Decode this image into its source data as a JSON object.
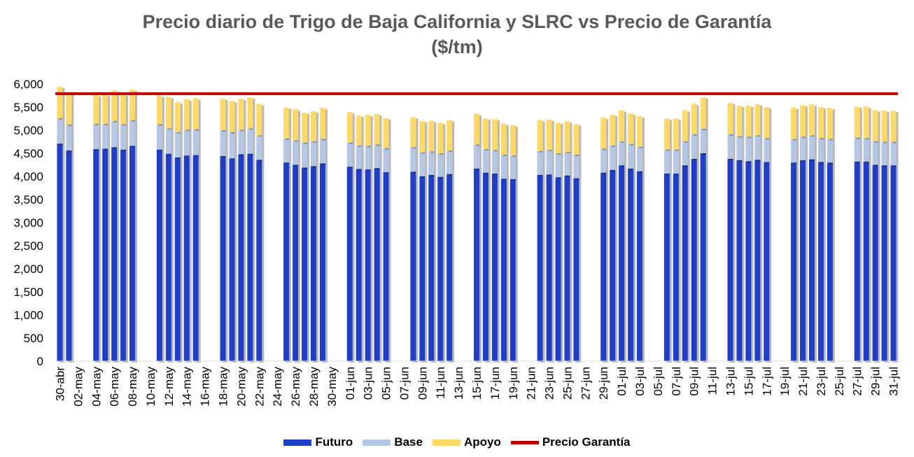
{
  "chart_data": {
    "type": "bar",
    "stacked": true,
    "title": "Precio diario de Trigo de Baja California y SLRC vs Precio de Garantía",
    "subtitle": "($/tm)",
    "ylim": [
      0,
      6000
    ],
    "yticks": [
      "0",
      "500",
      "1,000",
      "1,500",
      "2,000",
      "2,500",
      "3,000",
      "3,500",
      "4,000",
      "4,500",
      "5,000",
      "5,500",
      "6,000"
    ],
    "ytick_values": [
      0,
      500,
      1000,
      1500,
      2000,
      2500,
      3000,
      3500,
      4000,
      4500,
      5000,
      5500,
      6000
    ],
    "x_tick_labels": [
      "30-abr",
      "02-may",
      "04-may",
      "06-may",
      "08-may",
      "10-may",
      "12-may",
      "14-may",
      "16-may",
      "18-may",
      "20-may",
      "22-may",
      "24-may",
      "26-may",
      "28-may",
      "30-may",
      "01-jun",
      "03-jun",
      "05-jun",
      "07-jun",
      "09-jun",
      "11-jun",
      "13-jun",
      "15-jun",
      "17-jun",
      "19-jun",
      "21-jun",
      "23-jun",
      "25-jun",
      "27-jun",
      "29-jun",
      "01-jul",
      "03-jul",
      "05-jul",
      "07-jul",
      "09-jul",
      "11-jul",
      "13-jul",
      "15-jul",
      "17-jul",
      "19-jul",
      "21-jul",
      "23-jul",
      "25-jul",
      "27-jul",
      "29-jul",
      "31-jul"
    ],
    "series": [
      {
        "name": "Futuro",
        "color": "#1f3fc9"
      },
      {
        "name": "Base",
        "color": "#b4c7e7"
      },
      {
        "name": "Apoyo",
        "color": "#ffd966"
      },
      {
        "name": "Precio Garantía",
        "color": "#c00000",
        "type": "line",
        "value": 5790
      }
    ],
    "points": [
      {
        "date": "30-abr",
        "futuro": 4710,
        "base": 550,
        "apoyo": 680
      },
      {
        "date": "01-may",
        "futuro": 4560,
        "base": 560,
        "apoyo": 680
      },
      {
        "date": "04-may",
        "futuro": 4590,
        "base": 550,
        "apoyo": 620
      },
      {
        "date": "05-may",
        "futuro": 4600,
        "base": 540,
        "apoyo": 630
      },
      {
        "date": "06-may",
        "futuro": 4630,
        "base": 570,
        "apoyo": 660
      },
      {
        "date": "07-may",
        "futuro": 4580,
        "base": 550,
        "apoyo": 640
      },
      {
        "date": "08-may",
        "futuro": 4660,
        "base": 560,
        "apoyo": 660
      },
      {
        "date": "11-may",
        "futuro": 4580,
        "base": 550,
        "apoyo": 620
      },
      {
        "date": "12-may",
        "futuro": 4490,
        "base": 550,
        "apoyo": 680
      },
      {
        "date": "13-may",
        "futuro": 4410,
        "base": 550,
        "apoyo": 650
      },
      {
        "date": "14-may",
        "futuro": 4450,
        "base": 560,
        "apoyo": 660
      },
      {
        "date": "15-may",
        "futuro": 4460,
        "base": 560,
        "apoyo": 670
      },
      {
        "date": "18-may",
        "futuro": 4440,
        "base": 560,
        "apoyo": 680
      },
      {
        "date": "19-may",
        "futuro": 4390,
        "base": 570,
        "apoyo": 670
      },
      {
        "date": "20-may",
        "futuro": 4480,
        "base": 530,
        "apoyo": 670
      },
      {
        "date": "21-may",
        "futuro": 4490,
        "base": 550,
        "apoyo": 670
      },
      {
        "date": "22-may",
        "futuro": 4360,
        "base": 530,
        "apoyo": 680
      },
      {
        "date": "25-may",
        "futuro": 4300,
        "base": 520,
        "apoyo": 670
      },
      {
        "date": "26-may",
        "futuro": 4250,
        "base": 530,
        "apoyo": 670
      },
      {
        "date": "27-may",
        "futuro": 4190,
        "base": 540,
        "apoyo": 650
      },
      {
        "date": "28-may",
        "futuro": 4220,
        "base": 540,
        "apoyo": 650
      },
      {
        "date": "29-may",
        "futuro": 4280,
        "base": 530,
        "apoyo": 670
      },
      {
        "date": "01-jun",
        "futuro": 4210,
        "base": 520,
        "apoyo": 660
      },
      {
        "date": "02-jun",
        "futuro": 4160,
        "base": 510,
        "apoyo": 650
      },
      {
        "date": "03-jun",
        "futuro": 4150,
        "base": 510,
        "apoyo": 670
      },
      {
        "date": "04-jun",
        "futuro": 4180,
        "base": 510,
        "apoyo": 660
      },
      {
        "date": "05-jun",
        "futuro": 4090,
        "base": 520,
        "apoyo": 650
      },
      {
        "date": "08-jun",
        "futuro": 4100,
        "base": 530,
        "apoyo": 650
      },
      {
        "date": "09-jun",
        "futuro": 4000,
        "base": 520,
        "apoyo": 680
      },
      {
        "date": "10-jun",
        "futuro": 4030,
        "base": 510,
        "apoyo": 660
      },
      {
        "date": "11-jun",
        "futuro": 3990,
        "base": 510,
        "apoyo": 660
      },
      {
        "date": "12-jun",
        "futuro": 4050,
        "base": 510,
        "apoyo": 660
      },
      {
        "date": "15-jun",
        "futuro": 4170,
        "base": 520,
        "apoyo": 660
      },
      {
        "date": "16-jun",
        "futuro": 4080,
        "base": 510,
        "apoyo": 660
      },
      {
        "date": "17-jun",
        "futuro": 4060,
        "base": 510,
        "apoyo": 670
      },
      {
        "date": "18-jun",
        "futuro": 3950,
        "base": 520,
        "apoyo": 670
      },
      {
        "date": "19-jun",
        "futuro": 3940,
        "base": 510,
        "apoyo": 660
      },
      {
        "date": "22-jun",
        "futuro": 4030,
        "base": 520,
        "apoyo": 670
      },
      {
        "date": "23-jun",
        "futuro": 4040,
        "base": 530,
        "apoyo": 660
      },
      {
        "date": "24-jun",
        "futuro": 3980,
        "base": 520,
        "apoyo": 660
      },
      {
        "date": "25-jun",
        "futuro": 4020,
        "base": 510,
        "apoyo": 660
      },
      {
        "date": "26-jun",
        "futuro": 3960,
        "base": 510,
        "apoyo": 660
      },
      {
        "date": "29-jun",
        "futuro": 4080,
        "base": 520,
        "apoyo": 670
      },
      {
        "date": "30-jun",
        "futuro": 4140,
        "base": 530,
        "apoyo": 660
      },
      {
        "date": "01-jul",
        "futuro": 4240,
        "base": 520,
        "apoyo": 670
      },
      {
        "date": "02-jul",
        "futuro": 4170,
        "base": 530,
        "apoyo": 660
      },
      {
        "date": "03-jul",
        "futuro": 4110,
        "base": 530,
        "apoyo": 660
      },
      {
        "date": "06-jul",
        "futuro": 4060,
        "base": 520,
        "apoyo": 670
      },
      {
        "date": "07-jul",
        "futuro": 4060,
        "base": 520,
        "apoyo": 670
      },
      {
        "date": "08-jul",
        "futuro": 4240,
        "base": 520,
        "apoyo": 670
      },
      {
        "date": "09-jul",
        "futuro": 4380,
        "base": 530,
        "apoyo": 660
      },
      {
        "date": "10-jul",
        "futuro": 4500,
        "base": 530,
        "apoyo": 680
      },
      {
        "date": "13-jul",
        "futuro": 4380,
        "base": 530,
        "apoyo": 680
      },
      {
        "date": "14-jul",
        "futuro": 4350,
        "base": 520,
        "apoyo": 660
      },
      {
        "date": "15-jul",
        "futuro": 4330,
        "base": 530,
        "apoyo": 670
      },
      {
        "date": "16-jul",
        "futuro": 4360,
        "base": 530,
        "apoyo": 670
      },
      {
        "date": "17-jul",
        "futuro": 4310,
        "base": 520,
        "apoyo": 670
      },
      {
        "date": "20-jul",
        "futuro": 4300,
        "base": 510,
        "apoyo": 680
      },
      {
        "date": "21-jul",
        "futuro": 4350,
        "base": 510,
        "apoyo": 680
      },
      {
        "date": "22-jul",
        "futuro": 4370,
        "base": 520,
        "apoyo": 670
      },
      {
        "date": "23-jul",
        "futuro": 4310,
        "base": 520,
        "apoyo": 670
      },
      {
        "date": "24-jul",
        "futuro": 4300,
        "base": 510,
        "apoyo": 670
      },
      {
        "date": "27-jul",
        "futuro": 4320,
        "base": 520,
        "apoyo": 670
      },
      {
        "date": "28-jul",
        "futuro": 4320,
        "base": 510,
        "apoyo": 680
      },
      {
        "date": "29-jul",
        "futuro": 4250,
        "base": 510,
        "apoyo": 670
      },
      {
        "date": "30-jul",
        "futuro": 4240,
        "base": 510,
        "apoyo": 670
      },
      {
        "date": "31-jul",
        "futuro": 4240,
        "base": 510,
        "apoyo": 670
      }
    ]
  }
}
